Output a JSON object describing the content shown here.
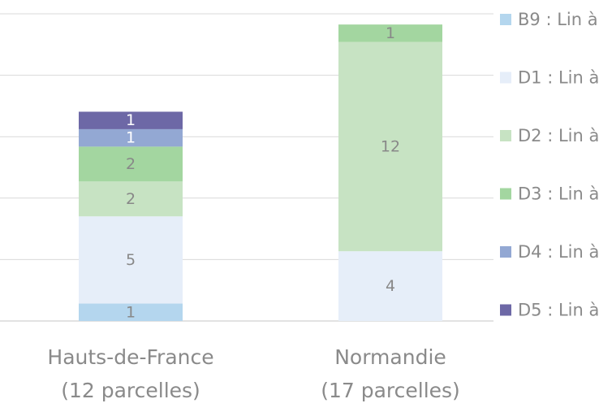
{
  "chart_data": {
    "type": "bar",
    "stacked": true,
    "categories": [
      [
        "Hauts-de-France",
        "(12 parcelles)"
      ],
      [
        "Normandie",
        "(17 parcelles)"
      ]
    ],
    "series": [
      {
        "name": "B9 : Lin à",
        "color": "#b4d6ee",
        "values": [
          1,
          0
        ]
      },
      {
        "name": "D1 : Lin à",
        "color": "#e6eef9",
        "values": [
          5,
          4
        ]
      },
      {
        "name": "D2 : Lin à",
        "color": "#c7e3c3",
        "values": [
          2,
          12
        ]
      },
      {
        "name": "D3 : Lin à",
        "color": "#a3d6a0",
        "values": [
          2,
          1
        ]
      },
      {
        "name": "D4 : Lin à",
        "color": "#93a8d3",
        "values": [
          1,
          0
        ]
      },
      {
        "name": "D5 : Lin à",
        "color": "#6d68a6",
        "values": [
          1,
          0
        ]
      }
    ],
    "label_colors": [
      "#888888",
      "#888888",
      "#888888",
      "#888888",
      "#ffffff",
      "#ffffff"
    ],
    "ylim": [
      0,
      17.8
    ],
    "grid_lines": 6,
    "grid_color": "#d9d9d9",
    "legend_position": "right"
  }
}
